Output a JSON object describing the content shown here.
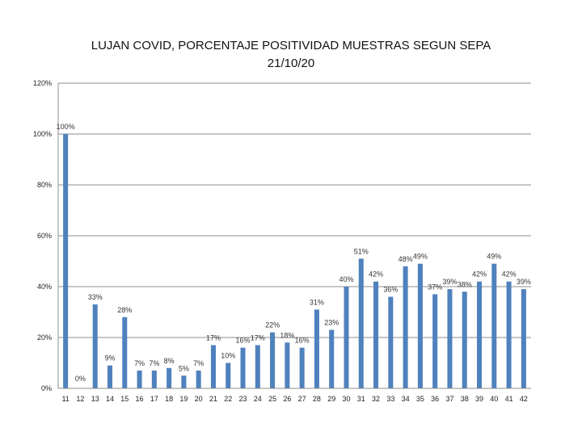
{
  "chart_data": {
    "type": "bar",
    "title_line1": "LUJAN COVID, PORCENTAJE POSITIVIDAD MUESTRAS  SEGUN SEPA",
    "title_line2": "21/10/20",
    "xlabel": "",
    "ylabel": "",
    "ylim": [
      0,
      120
    ],
    "yticks": [
      "0%",
      "20%",
      "40%",
      "60%",
      "80%",
      "100%",
      "120%"
    ],
    "grid": true,
    "legend": "none",
    "bar_color": "#4F81BD",
    "categories": [
      "11",
      "12",
      "13",
      "14",
      "15",
      "16",
      "17",
      "18",
      "19",
      "20",
      "21",
      "22",
      "23",
      "24",
      "25",
      "26",
      "27",
      "28",
      "29",
      "30",
      "31",
      "32",
      "33",
      "34",
      "35",
      "36",
      "37",
      "38",
      "39",
      "40",
      "41",
      "42"
    ],
    "values": [
      100,
      0,
      33,
      9,
      28,
      7,
      7,
      8,
      5,
      7,
      17,
      10,
      16,
      17,
      22,
      18,
      16,
      31,
      23,
      40,
      51,
      42,
      36,
      48,
      49,
      37,
      39,
      38,
      42,
      49,
      42,
      39
    ],
    "labels": [
      "100%",
      "0%",
      "33%",
      "9%",
      "28%",
      "7%",
      "7%",
      "8%",
      "5%",
      "7%",
      "17%",
      "10%",
      "16%",
      "17%",
      "22%",
      "18%",
      "16%",
      "31%",
      "23%",
      "40%",
      "51%",
      "42%",
      "36%",
      "48%",
      "49%",
      "37%",
      "39%",
      "38%",
      "42%",
      "49%",
      "42%",
      "39%"
    ]
  }
}
